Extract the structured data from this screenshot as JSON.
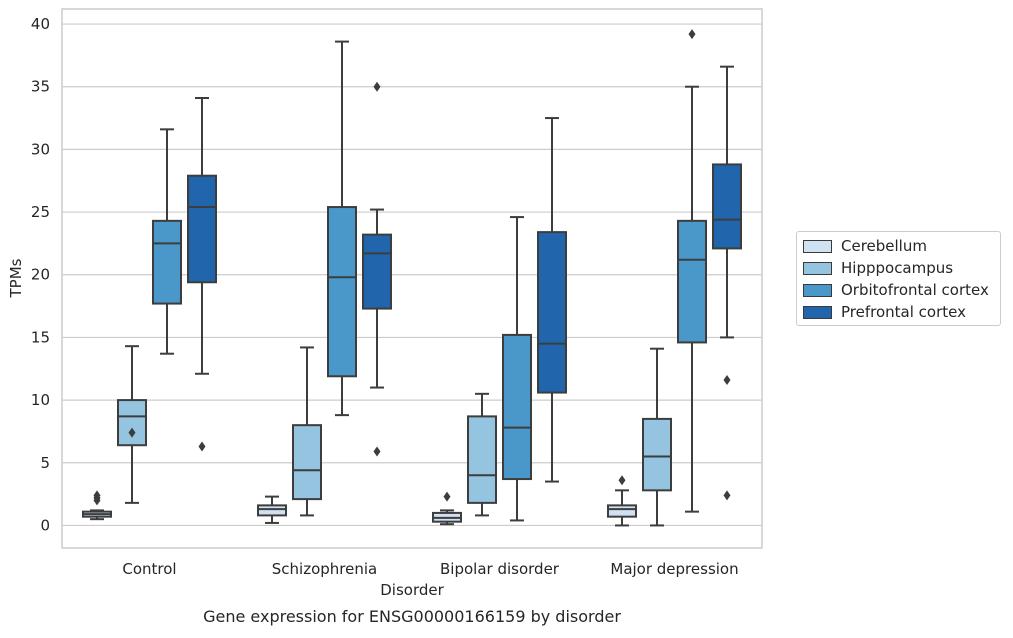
{
  "chart_data": {
    "type": "box",
    "title": "Gene expression for ENSG00000166159 by disorder",
    "xlabel": "Disorder",
    "ylabel": "TPMs",
    "ylim": [
      -1.8,
      41.2
    ],
    "yticks": [
      0,
      5,
      10,
      15,
      20,
      25,
      30,
      35,
      40
    ],
    "grid": "horizontal",
    "legend_position": "right",
    "categories": [
      "Control",
      "Schizophrenia",
      "Bipolar disorder",
      "Major depression"
    ],
    "series": [
      {
        "name": "Cerebellum",
        "color": "#d0e1f2",
        "boxes": [
          {
            "whislo": 0.5,
            "q1": 0.7,
            "med": 0.9,
            "q3": 1.1,
            "whishi": 1.2,
            "fliers": [
              2.0,
              2.2,
              2.4
            ]
          },
          {
            "whislo": 0.2,
            "q1": 0.8,
            "med": 1.3,
            "q3": 1.6,
            "whishi": 2.3,
            "fliers": []
          },
          {
            "whislo": 0.1,
            "q1": 0.3,
            "med": 0.6,
            "q3": 1.0,
            "whishi": 1.2,
            "fliers": [
              2.3
            ]
          },
          {
            "whislo": 0.0,
            "q1": 0.7,
            "med": 1.3,
            "q3": 1.6,
            "whishi": 2.8,
            "fliers": [
              3.6
            ]
          }
        ]
      },
      {
        "name": "Hipppocampus",
        "color": "#94c4df",
        "boxes": [
          {
            "whislo": 1.8,
            "q1": 6.4,
            "med": 8.7,
            "q3": 10.0,
            "whishi": 14.3,
            "fliers": [
              7.4
            ]
          },
          {
            "whislo": 0.8,
            "q1": 2.1,
            "med": 4.4,
            "q3": 8.0,
            "whishi": 14.2,
            "fliers": []
          },
          {
            "whislo": 0.8,
            "q1": 1.8,
            "med": 4.0,
            "q3": 8.7,
            "whishi": 10.5,
            "fliers": []
          },
          {
            "whislo": 0.0,
            "q1": 2.8,
            "med": 5.5,
            "q3": 8.5,
            "whishi": 14.1,
            "fliers": []
          }
        ]
      },
      {
        "name": "Orbitofrontal cortex",
        "color": "#4a98c9",
        "boxes": [
          {
            "whislo": 13.7,
            "q1": 17.7,
            "med": 22.5,
            "q3": 24.3,
            "whishi": 31.6,
            "fliers": []
          },
          {
            "whislo": 8.8,
            "q1": 11.9,
            "med": 19.8,
            "q3": 25.4,
            "whishi": 38.6,
            "fliers": []
          },
          {
            "whislo": 0.4,
            "q1": 3.7,
            "med": 7.8,
            "q3": 15.2,
            "whishi": 24.6,
            "fliers": []
          },
          {
            "whislo": 1.1,
            "q1": 14.6,
            "med": 21.2,
            "q3": 24.3,
            "whishi": 35.0,
            "fliers": [
              39.2
            ]
          }
        ]
      },
      {
        "name": "Prefrontal cortex",
        "color": "#2166ac",
        "boxes": [
          {
            "whislo": 12.1,
            "q1": 19.4,
            "med": 25.4,
            "q3": 27.9,
            "whishi": 34.1,
            "fliers": [
              6.3
            ]
          },
          {
            "whislo": 11.0,
            "q1": 17.3,
            "med": 21.7,
            "q3": 23.2,
            "whishi": 25.2,
            "fliers": [
              5.9,
              35.0
            ]
          },
          {
            "whislo": 3.5,
            "q1": 10.6,
            "med": 14.5,
            "q3": 23.4,
            "whishi": 32.5,
            "fliers": []
          },
          {
            "whislo": 15.0,
            "q1": 22.1,
            "med": 24.4,
            "q3": 28.8,
            "whishi": 36.6,
            "fliers": [
              2.4,
              11.6
            ]
          }
        ]
      }
    ]
  }
}
